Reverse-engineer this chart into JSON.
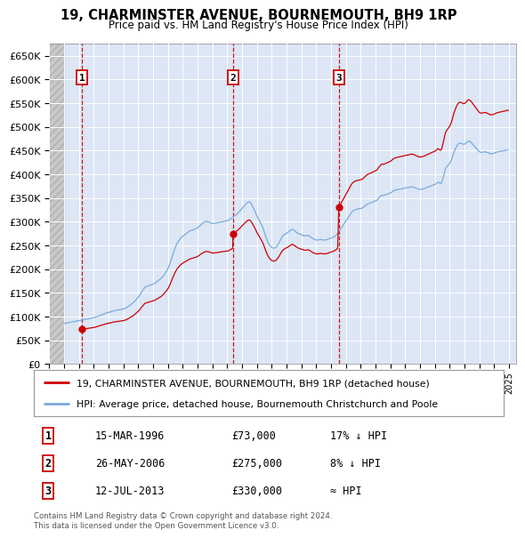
{
  "title": "19, CHARMINSTER AVENUE, BOURNEMOUTH, BH9 1RP",
  "subtitle": "Price paid vs. HM Land Registry's House Price Index (HPI)",
  "ylim": [
    0,
    675000
  ],
  "yticks": [
    0,
    50000,
    100000,
    150000,
    200000,
    250000,
    300000,
    350000,
    400000,
    450000,
    500000,
    550000,
    600000,
    650000
  ],
  "xlim_start": 1994.0,
  "xlim_end": 2025.5,
  "background_chart": "#dce6f5",
  "grid_color": "#ffffff",
  "sale_dates": [
    1996.21,
    2006.4,
    2013.53
  ],
  "sale_prices": [
    73000,
    275000,
    330000
  ],
  "sale_labels": [
    "1",
    "2",
    "3"
  ],
  "legend_line1": "19, CHARMINSTER AVENUE, BOURNEMOUTH, BH9 1RP (detached house)",
  "legend_line2": "HPI: Average price, detached house, Bournemouth Christchurch and Poole",
  "table_data": [
    [
      "1",
      "15-MAR-1996",
      "£73,000",
      "17% ↓ HPI"
    ],
    [
      "2",
      "26-MAY-2006",
      "£275,000",
      "8% ↓ HPI"
    ],
    [
      "3",
      "12-JUL-2013",
      "£330,000",
      "≈ HPI"
    ]
  ],
  "footer": "Contains HM Land Registry data © Crown copyright and database right 2024.\nThis data is licensed under the Open Government Licence v3.0.",
  "red_line_color": "#cc0000",
  "blue_line_color": "#7aabda",
  "sale_dot_color": "#cc0000",
  "hatch_start": 1994.0,
  "hatch_end": 1995.08
}
